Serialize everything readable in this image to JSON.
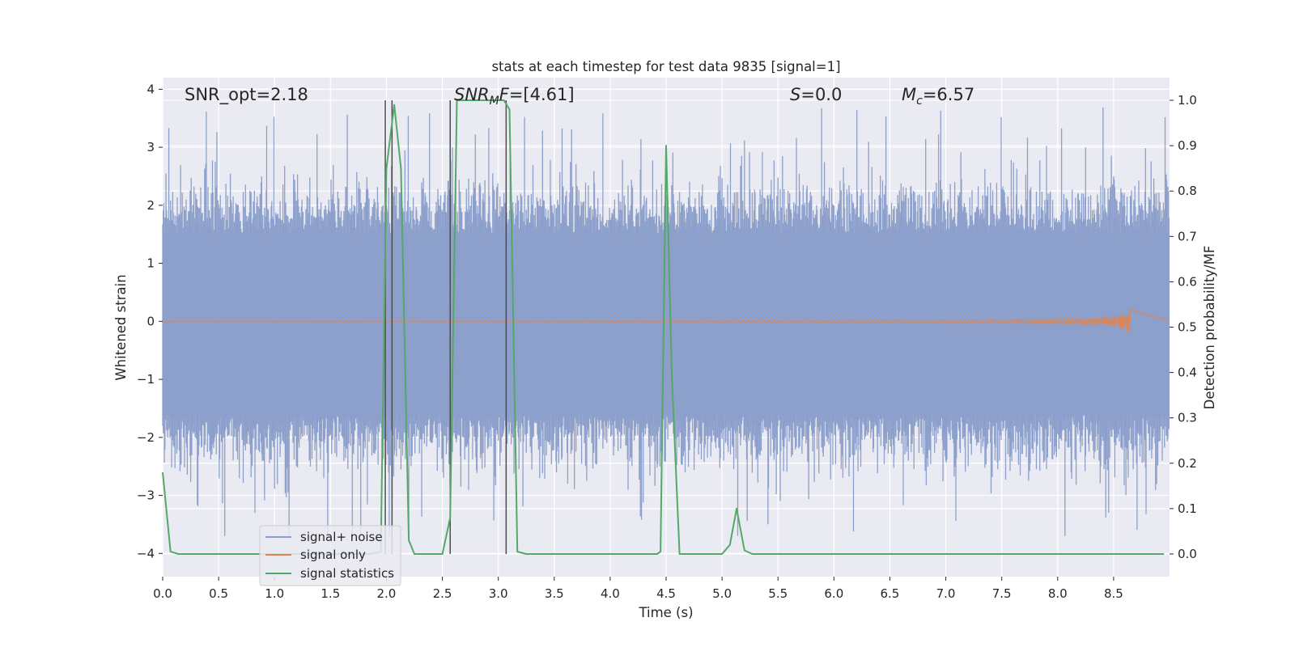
{
  "chart_data": {
    "type": "line",
    "title": "stats at each timestep for test data 9835 [signal=1]",
    "xlabel": "Time (s)",
    "ylabel_left": "Whitened strain",
    "ylabel_right": "Detection probability/MF",
    "xlim": [
      0.0,
      9.0
    ],
    "ylim_left": [
      -4.4,
      4.2
    ],
    "ylim_right": [
      -0.05,
      1.05
    ],
    "x_ticks": [
      0.0,
      0.5,
      1.0,
      1.5,
      2.0,
      2.5,
      3.0,
      3.5,
      4.0,
      4.5,
      5.0,
      5.5,
      6.0,
      6.5,
      7.0,
      7.5,
      8.0,
      8.5
    ],
    "x_tick_labels": [
      "0.0",
      "0.5",
      "1.0",
      "1.5",
      "2.0",
      "2.5",
      "3.0",
      "3.5",
      "4.0",
      "4.5",
      "5.0",
      "5.5",
      "6.0",
      "6.5",
      "7.0",
      "7.5",
      "8.0",
      "8.5"
    ],
    "y_left_ticks": [
      4,
      3,
      2,
      1,
      0,
      -1,
      -2,
      -3,
      -4
    ],
    "y_left_tick_labels": [
      "4",
      "3",
      "2",
      "1",
      "0",
      "−1",
      "−2",
      "−3",
      "−4"
    ],
    "y_right_ticks": [
      1.0,
      0.9,
      0.8,
      0.7,
      0.6,
      0.5,
      0.4,
      0.3,
      0.2,
      0.1,
      0.0
    ],
    "y_right_tick_labels": [
      "1.0",
      "0.9",
      "0.8",
      "0.7",
      "0.6",
      "0.5",
      "0.4",
      "0.3",
      "0.2",
      "0.1",
      "0.0"
    ],
    "annotations": {
      "snr_opt": "SNR_opt=2.18",
      "snr_mf_italic": "SNR",
      "snr_mf_sub": "M",
      "snr_mf_italic2": "F",
      "snr_mf_value": "=[4.61]",
      "s_italic": "S",
      "s_value": "=0.0",
      "mc_italic": "M",
      "mc_sub": "c",
      "mc_value": "=6.57"
    },
    "legend": {
      "position": "lower-left",
      "entries": [
        "signal+ noise",
        "signal only",
        "signal statistics"
      ]
    },
    "colors": {
      "noise": "#8da0cb",
      "signal": "#dd8452",
      "stats": "#55a868",
      "vlines": "#4d4d4d",
      "background": "#eaeaf2",
      "grid": "#ffffff"
    },
    "series": [
      {
        "name": "signal+ noise",
        "axis": "left",
        "description": "whitened strain noise, roughly symmetric",
        "points": 1800,
        "typical_abs_max": 2.3,
        "peak_abs": 3.7,
        "dense_band": [
          -1.6,
          1.5
        ]
      },
      {
        "name": "signal only",
        "axis": "left",
        "description": "chirp waveform growing toward merger",
        "end_time": 8.65,
        "peak_amplitude": 0.22
      },
      {
        "name": "signal statistics",
        "axis": "right",
        "x": [
          0.0,
          0.07,
          0.14,
          1.85,
          1.95,
          2.0,
          2.07,
          2.13,
          2.2,
          2.25,
          2.5,
          2.57,
          2.63,
          3.05,
          3.1,
          3.17,
          3.25,
          4.42,
          4.45,
          4.5,
          4.55,
          4.62,
          5.0,
          5.07,
          5.13,
          5.2,
          5.27,
          8.95
        ],
        "y": [
          0.18,
          0.005,
          0.0,
          0.0,
          0.005,
          0.85,
          0.99,
          0.85,
          0.03,
          0.0,
          0.0,
          0.08,
          1.0,
          1.0,
          0.98,
          0.005,
          0.0,
          0.0,
          0.005,
          0.9,
          0.4,
          0.0,
          0.0,
          0.02,
          0.1,
          0.008,
          0.0,
          0.0
        ]
      }
    ],
    "vlines_seconds": [
      1.99,
      2.05,
      2.57,
      3.07
    ],
    "vlines_range": [
      0.0,
      1.0
    ]
  }
}
